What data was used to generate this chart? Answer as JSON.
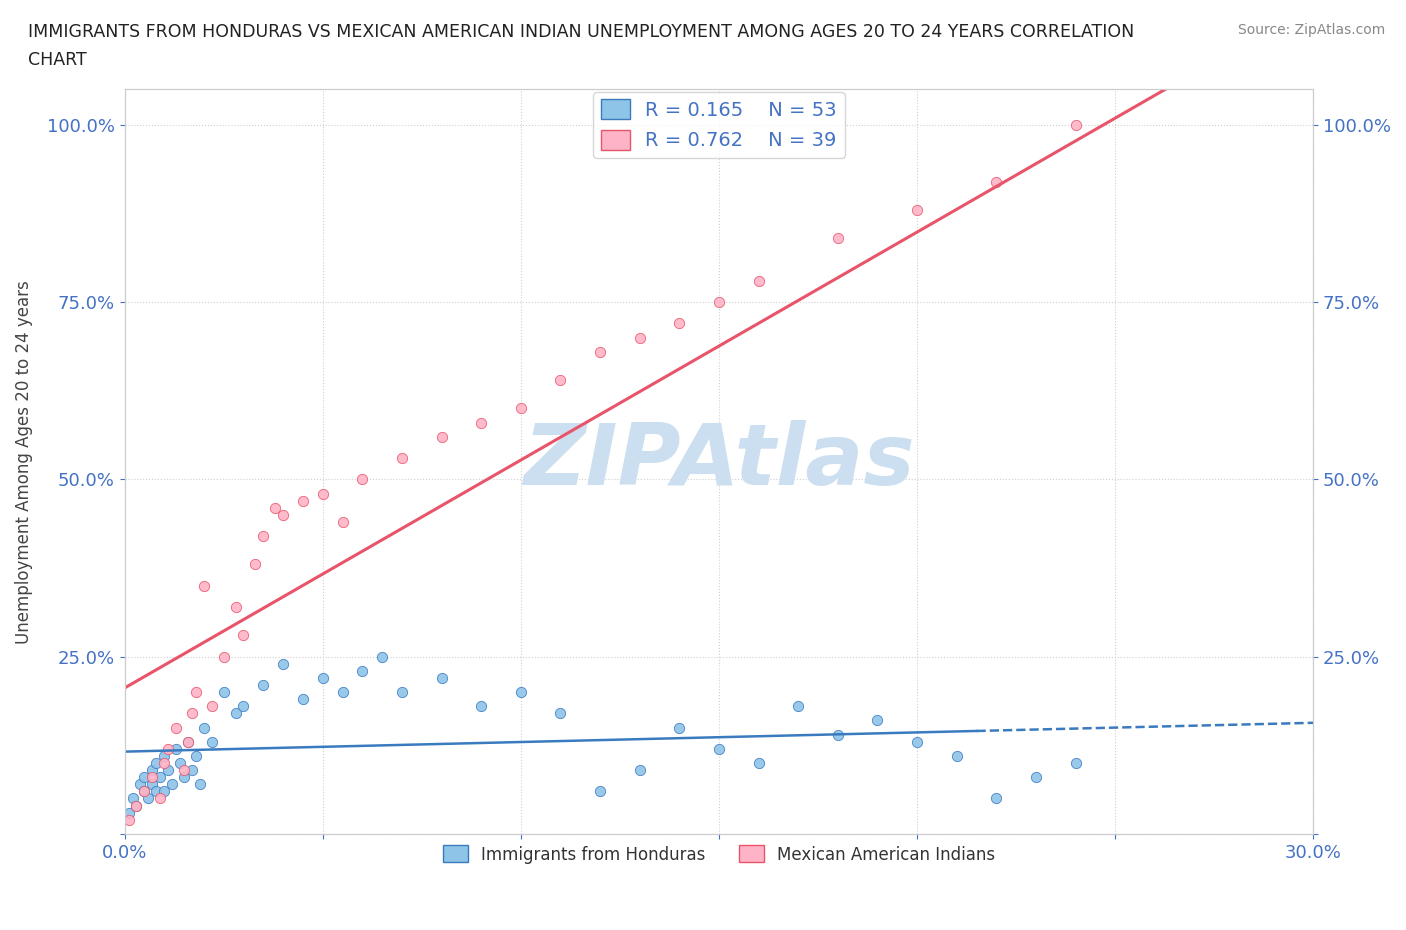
{
  "title_line1": "IMMIGRANTS FROM HONDURAS VS MEXICAN AMERICAN INDIAN UNEMPLOYMENT AMONG AGES 20 TO 24 YEARS CORRELATION",
  "title_line2": "CHART",
  "source": "Source: ZipAtlas.com",
  "ylabel": "Unemployment Among Ages 20 to 24 years",
  "xlim": [
    0.0,
    0.3
  ],
  "ylim": [
    0.0,
    1.05
  ],
  "color_honduras": "#8ec4e8",
  "color_mexican": "#ffb3c6",
  "color_line_honduras": "#3a7abf",
  "color_line_mexican": "#e8546a",
  "legend_r_honduras": "R = 0.165",
  "legend_n_honduras": "N = 53",
  "legend_r_mexican": "R = 0.762",
  "legend_n_mexican": "N = 39",
  "legend_label_honduras": "Immigrants from Honduras",
  "legend_label_mexican": "Mexican American Indians",
  "watermark": "ZIPAtlas",
  "watermark_color": "#ccdff0",
  "background_color": "#ffffff",
  "tick_color": "#4472c4",
  "honduras_x": [
    0.001,
    0.002,
    0.003,
    0.004,
    0.005,
    0.005,
    0.006,
    0.007,
    0.007,
    0.008,
    0.008,
    0.009,
    0.01,
    0.01,
    0.011,
    0.012,
    0.013,
    0.014,
    0.015,
    0.016,
    0.017,
    0.018,
    0.019,
    0.02,
    0.022,
    0.025,
    0.028,
    0.03,
    0.035,
    0.04,
    0.045,
    0.05,
    0.055,
    0.06,
    0.065,
    0.07,
    0.08,
    0.09,
    0.1,
    0.11,
    0.12,
    0.13,
    0.14,
    0.15,
    0.16,
    0.17,
    0.18,
    0.19,
    0.2,
    0.21,
    0.22,
    0.23,
    0.24
  ],
  "honduras_y": [
    0.03,
    0.05,
    0.04,
    0.07,
    0.06,
    0.08,
    0.05,
    0.09,
    0.07,
    0.06,
    0.1,
    0.08,
    0.11,
    0.06,
    0.09,
    0.07,
    0.12,
    0.1,
    0.08,
    0.13,
    0.09,
    0.11,
    0.07,
    0.15,
    0.13,
    0.2,
    0.17,
    0.18,
    0.21,
    0.24,
    0.19,
    0.22,
    0.2,
    0.23,
    0.25,
    0.2,
    0.22,
    0.18,
    0.2,
    0.17,
    0.06,
    0.09,
    0.15,
    0.12,
    0.1,
    0.18,
    0.14,
    0.16,
    0.13,
    0.11,
    0.05,
    0.08,
    0.1
  ],
  "mexican_x": [
    0.001,
    0.003,
    0.005,
    0.007,
    0.009,
    0.01,
    0.011,
    0.013,
    0.015,
    0.016,
    0.017,
    0.018,
    0.02,
    0.022,
    0.025,
    0.028,
    0.03,
    0.033,
    0.035,
    0.038,
    0.04,
    0.045,
    0.05,
    0.055,
    0.06,
    0.07,
    0.08,
    0.09,
    0.1,
    0.11,
    0.12,
    0.13,
    0.14,
    0.15,
    0.16,
    0.18,
    0.2,
    0.22,
    0.24
  ],
  "mexican_y": [
    0.02,
    0.04,
    0.06,
    0.08,
    0.05,
    0.1,
    0.12,
    0.15,
    0.09,
    0.13,
    0.17,
    0.2,
    0.35,
    0.18,
    0.25,
    0.32,
    0.28,
    0.38,
    0.42,
    0.46,
    0.45,
    0.47,
    0.48,
    0.44,
    0.5,
    0.53,
    0.56,
    0.58,
    0.6,
    0.64,
    0.68,
    0.7,
    0.72,
    0.75,
    0.78,
    0.84,
    0.88,
    0.92,
    1.0
  ]
}
